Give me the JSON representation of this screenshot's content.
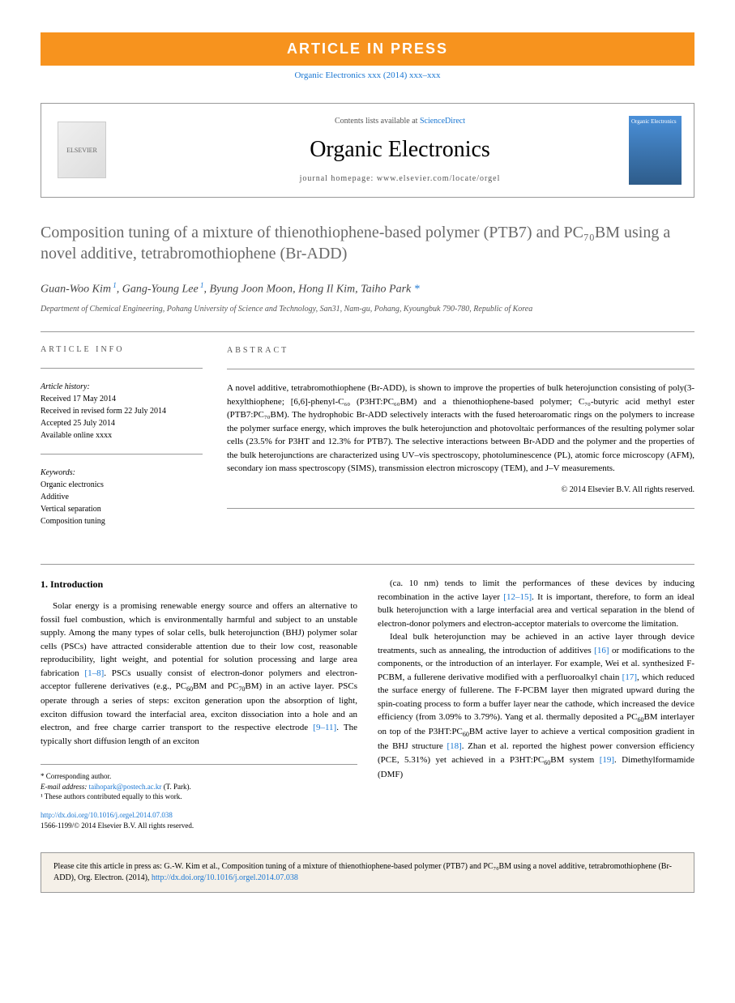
{
  "banner": "ARTICLE IN PRESS",
  "journal_ref": "Organic Electronics xxx (2014) xxx–xxx",
  "header": {
    "contents_prefix": "Contents lists available at ",
    "contents_link": "ScienceDirect",
    "journal_title": "Organic Electronics",
    "homepage_prefix": "journal homepage: ",
    "homepage_url": "www.elsevier.com/locate/orgel",
    "elsevier_text": "ELSEVIER",
    "cover_text": "Organic Electronics"
  },
  "title": "Composition tuning of a mixture of thienothiophene-based polymer (PTB7) and PC₇₀BM using a novel additive, tetrabromothiophene (Br-ADD)",
  "authors_html": "Guan-Woo Kim ¹, Gang-Young Lee ¹, Byung Joon Moon, Hong Il Kim, Taiho Park *",
  "affiliation": "Department of Chemical Engineering, Pohang University of Science and Technology, San31, Nam-gu, Pohang, Kyoungbuk 790-780, Republic of Korea",
  "article_info": {
    "heading": "ARTICLE INFO",
    "history_label": "Article history:",
    "received": "Received 17 May 2014",
    "revised": "Received in revised form 22 July 2014",
    "accepted": "Accepted 25 July 2014",
    "online": "Available online xxxx",
    "keywords_label": "Keywords:",
    "keywords": [
      "Organic electronics",
      "Additive",
      "Vertical separation",
      "Composition tuning"
    ]
  },
  "abstract": {
    "heading": "ABSTRACT",
    "text": "A novel additive, tetrabromothiophene (Br-ADD), is shown to improve the properties of bulk heterojunction consisting of poly(3-hexylthiophene; [6,6]-phenyl-C₆₀ (P3HT:PC₆₀BM) and a thienothiophene-based polymer; C₇₀-butyric acid methyl ester (PTB7:PC₇₀BM). The hydrophobic Br-ADD selectively interacts with the fused heteroaromatic rings on the polymers to increase the polymer surface energy, which improves the bulk heterojunction and photovoltaic performances of the resulting polymer solar cells (23.5% for P3HT and 12.3% for PTB7). The selective interactions between Br-ADD and the polymer and the properties of the bulk heterojunctions are characterized using UV–vis spectroscopy, photoluminescence (PL), atomic force microscopy (AFM), secondary ion mass spectroscopy (SIMS), transmission electron microscopy (TEM), and J–V measurements.",
    "copyright": "© 2014 Elsevier B.V. All rights reserved."
  },
  "body": {
    "section_heading": "1. Introduction",
    "col1_p1": "Solar energy is a promising renewable energy source and offers an alternative to fossil fuel combustion, which is environmentally harmful and subject to an unstable supply. Among the many types of solar cells, bulk heterojunction (BHJ) polymer solar cells (PSCs) have attracted considerable attention due to their low cost, reasonable reproducibility, light weight, and potential for solution processing and large area fabrication [1–8]. PSCs usually consist of electron-donor polymers and electron-acceptor fullerene derivatives (e.g., PC₆₀BM and PC₇₀BM) in an active layer. PSCs operate through a series of steps: exciton generation upon the absorption of light, exciton diffusion toward the interfacial area, exciton dissociation into a hole and an electron, and free charge carrier transport to the respective electrode [9–11]. The typically short diffusion length of an exciton",
    "col2_p1": "(ca. 10 nm) tends to limit the performances of these devices by inducing recombination in the active layer [12–15]. It is important, therefore, to form an ideal bulk heterojunction with a large interfacial area and vertical separation in the blend of electron-donor polymers and electron-acceptor materials to overcome the limitation.",
    "col2_p2": "Ideal bulk heterojunction may be achieved in an active layer through device treatments, such as annealing, the introduction of additives [16] or modifications to the components, or the introduction of an interlayer. For example, Wei et al. synthesized F-PCBM, a fullerene derivative modified with a perfluoroalkyl chain [17], which reduced the surface energy of fullerene. The F-PCBM layer then migrated upward during the spin-coating process to form a buffer layer near the cathode, which increased the device efficiency (from 3.09% to 3.79%). Yang et al. thermally deposited a PC₆₀BM interlayer on top of the P3HT:PC₆₀BM active layer to achieve a vertical composition gradient in the BHJ structure [18]. Zhan et al. reported the highest power conversion efficiency (PCE, 5.31%) yet achieved in a P3HT:PC₆₀BM system [19]. Dimethylformamide (DMF)"
  },
  "footnotes": {
    "corr": "* Corresponding author.",
    "email_label": "E-mail address: ",
    "email": "taihopark@postech.ac.kr",
    "email_suffix": " (T. Park).",
    "equal": "¹ These authors contributed equally to this work."
  },
  "doi": {
    "url": "http://dx.doi.org/10.1016/j.orgel.2014.07.038",
    "issn": "1566-1199/© 2014 Elsevier B.V. All rights reserved."
  },
  "citation": {
    "text": "Please cite this article in press as: G.-W. Kim et al., Composition tuning of a mixture of thienothiophene-based polymer (PTB7) and PC₇₀BM using a novel additive, tetrabromothiophene (Br-ADD), Org. Electron. (2014), ",
    "link": "http://dx.doi.org/10.1016/j.orgel.2014.07.038"
  }
}
